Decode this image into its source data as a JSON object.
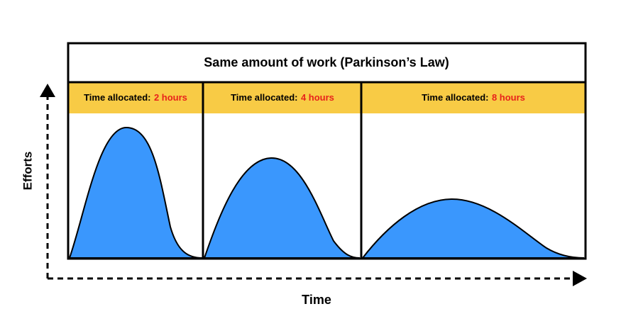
{
  "title": "Same amount of work (Parkinson’s Law)",
  "panels": [
    {
      "label": "Time allocated:",
      "hours": "2 hours"
    },
    {
      "label": "Time allocated:",
      "hours": "4 hours"
    },
    {
      "label": "Time allocated:",
      "hours": "8 hours"
    }
  ],
  "y_axis_label": "Efforts",
  "x_axis_label": "Time"
}
